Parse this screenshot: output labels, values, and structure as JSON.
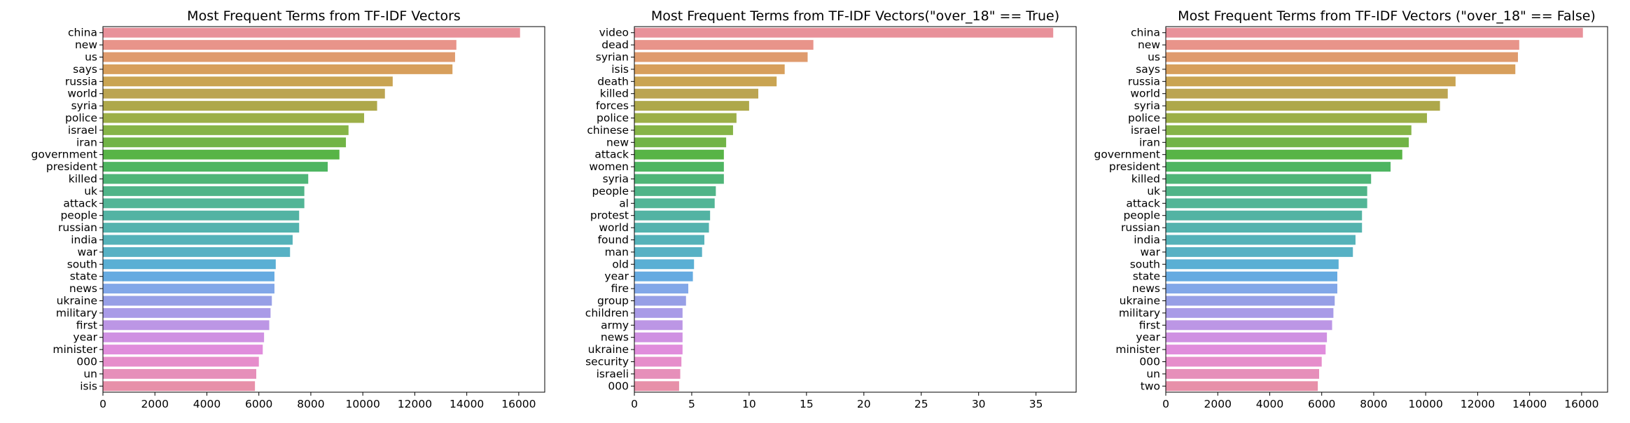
{
  "chart_data": [
    {
      "type": "bar",
      "orientation": "horizontal",
      "title": "Most Frequent Terms from TF-IDF Vectors",
      "categories": [
        "china",
        "new",
        "us",
        "says",
        "russia",
        "world",
        "syria",
        "police",
        "israel",
        "iran",
        "government",
        "president",
        "killed",
        "uk",
        "attack",
        "people",
        "russian",
        "india",
        "war",
        "south",
        "state",
        "news",
        "ukraine",
        "military",
        "first",
        "year",
        "minister",
        "000",
        "un",
        "isis"
      ],
      "values": [
        16050,
        13600,
        13550,
        13450,
        11150,
        10850,
        10550,
        10050,
        9450,
        9350,
        9100,
        8650,
        7900,
        7750,
        7750,
        7550,
        7550,
        7300,
        7200,
        6650,
        6600,
        6600,
        6500,
        6450,
        6400,
        6200,
        6150,
        6000,
        5900,
        5850
      ],
      "xlim": [
        0,
        17000
      ],
      "xticks": [
        0,
        2000,
        4000,
        6000,
        8000,
        10000,
        12000,
        14000,
        16000
      ],
      "grid": false
    },
    {
      "type": "bar",
      "orientation": "horizontal",
      "title": "Most Frequent Terms from TF-IDF Vectors(\"over_18\" == True)",
      "categories": [
        "video",
        "dead",
        "syrian",
        "isis",
        "death",
        "killed",
        "forces",
        "police",
        "chinese",
        "new",
        "attack",
        "women",
        "syria",
        "people",
        "al",
        "protest",
        "world",
        "found",
        "man",
        "old",
        "year",
        "fire",
        "group",
        "children",
        "army",
        "news",
        "ukraine",
        "security",
        "israeli",
        "000"
      ],
      "values": [
        36.5,
        15.6,
        15.1,
        13.1,
        12.4,
        10.8,
        10.0,
        8.9,
        8.6,
        8.0,
        7.8,
        7.8,
        7.8,
        7.1,
        7.0,
        6.6,
        6.5,
        6.1,
        5.9,
        5.2,
        5.1,
        4.7,
        4.5,
        4.2,
        4.2,
        4.2,
        4.2,
        4.1,
        4.0,
        3.9
      ],
      "xlim": [
        0,
        38.5
      ],
      "xticks": [
        0,
        5,
        10,
        15,
        20,
        25,
        30,
        35
      ],
      "grid": false
    },
    {
      "type": "bar",
      "orientation": "horizontal",
      "title": "Most Frequent Terms from TF-IDF Vectors (\"over_18\" == False)",
      "categories": [
        "china",
        "new",
        "us",
        "says",
        "russia",
        "world",
        "syria",
        "police",
        "israel",
        "iran",
        "government",
        "president",
        "killed",
        "uk",
        "attack",
        "people",
        "russian",
        "india",
        "war",
        "south",
        "state",
        "news",
        "ukraine",
        "military",
        "first",
        "year",
        "minister",
        "000",
        "un",
        "two"
      ],
      "values": [
        16050,
        13600,
        13550,
        13450,
        11150,
        10850,
        10550,
        10050,
        9450,
        9350,
        9100,
        8650,
        7900,
        7750,
        7750,
        7550,
        7550,
        7300,
        7200,
        6650,
        6600,
        6600,
        6500,
        6450,
        6400,
        6200,
        6150,
        6000,
        5900,
        5850
      ],
      "xlim": [
        0,
        17000
      ],
      "xticks": [
        0,
        2000,
        4000,
        6000,
        8000,
        10000,
        12000,
        14000,
        16000
      ],
      "grid": false
    }
  ],
  "palette": [
    "#e8919a",
    "#e8948a",
    "#df9b6e",
    "#d79f5c",
    "#c9a452",
    "#bba451",
    "#aea84a",
    "#9daf48",
    "#86b447",
    "#71b446",
    "#58b446",
    "#4eb561",
    "#4fb577",
    "#50b488",
    "#52b596",
    "#53b3a3",
    "#54b3ae",
    "#55b2b9",
    "#57b1c4",
    "#5aafd4",
    "#66abe1",
    "#82a7e8",
    "#979fe6",
    "#a99be7",
    "#bc96e5",
    "#cf91e2",
    "#e08ddc",
    "#e68dcb",
    "#e68fba",
    "#e790a9"
  ]
}
